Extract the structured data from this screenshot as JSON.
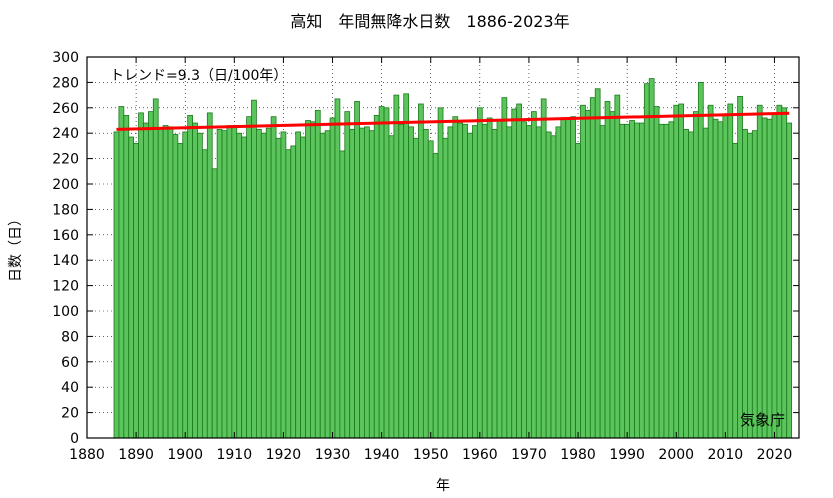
{
  "chart_data": {
    "type": "bar",
    "title": "高知　年間無降水日数　1886-2023年",
    "xlabel": "年",
    "ylabel": "日数（日）",
    "trend_label": "トレンド=9.3（日/100年）",
    "source": "気象庁",
    "xlim": [
      1880,
      2025
    ],
    "ylim": [
      0,
      300
    ],
    "xticks": [
      1880,
      1890,
      1900,
      1910,
      1920,
      1930,
      1940,
      1950,
      1960,
      1970,
      1980,
      1990,
      2000,
      2010,
      2020
    ],
    "yticks": [
      0,
      20,
      40,
      60,
      80,
      100,
      120,
      140,
      160,
      180,
      200,
      220,
      240,
      260,
      280,
      300
    ],
    "grid": true,
    "bar_color": "#5cc45c",
    "bar_edge_color": "#1a7a1a",
    "trend_color": "#ff0000",
    "start_year": 1886,
    "end_year": 2023,
    "values": [
      241,
      261,
      254,
      237,
      232,
      256,
      248,
      257,
      267,
      244,
      246,
      245,
      239,
      232,
      241,
      254,
      248,
      240,
      227,
      256,
      212,
      243,
      242,
      246,
      246,
      240,
      237,
      253,
      266,
      243,
      240,
      244,
      253,
      236,
      241,
      227,
      230,
      241,
      237,
      250,
      249,
      258,
      240,
      242,
      252,
      267,
      226,
      257,
      243,
      265,
      244,
      245,
      242,
      254,
      261,
      260,
      238,
      270,
      247,
      271,
      245,
      236,
      263,
      243,
      234,
      224,
      260,
      236,
      245,
      253,
      248,
      247,
      240,
      246,
      260,
      247,
      252,
      243,
      250,
      268,
      245,
      259,
      263,
      249,
      246,
      257,
      245,
      267,
      241,
      238,
      245,
      251,
      251,
      253,
      232,
      262,
      258,
      268,
      275,
      246,
      265,
      257,
      270,
      247,
      247,
      250,
      248,
      248,
      279,
      283,
      261,
      247,
      247,
      249,
      262,
      263,
      243,
      241,
      257,
      280,
      244,
      262,
      251,
      249,
      255,
      263,
      232,
      269,
      243,
      240,
      242,
      262,
      252,
      251,
      256,
      262,
      260,
      248
    ],
    "trend": {
      "x": [
        1886,
        2023
      ],
      "y": [
        243.0,
        255.7
      ]
    }
  }
}
